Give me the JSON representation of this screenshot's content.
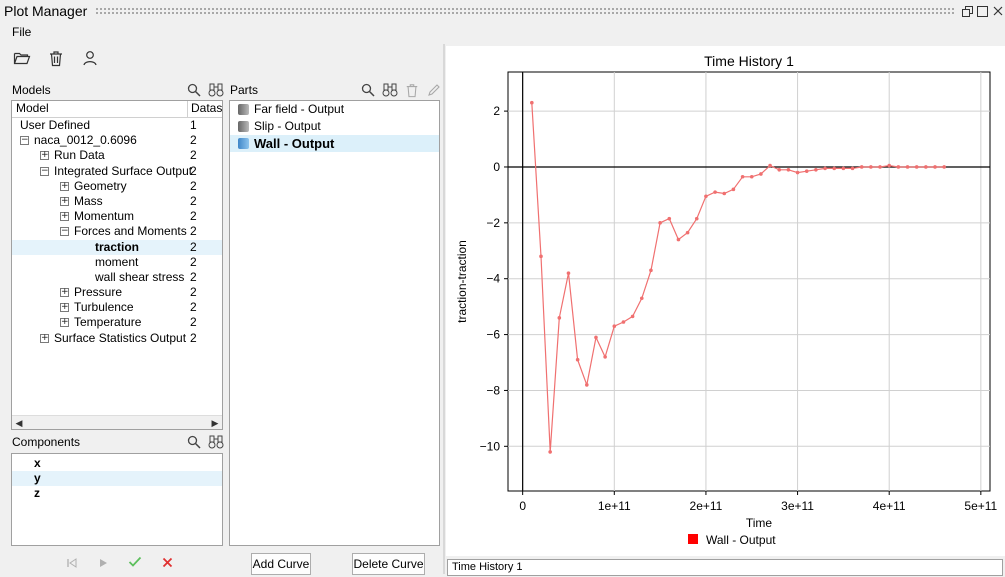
{
  "window": {
    "title": "Plot Manager"
  },
  "menu": {
    "file": "File"
  },
  "toolbar": {
    "icons": [
      "open-folder-icon",
      "trash-icon",
      "user-icon"
    ]
  },
  "models": {
    "label": "Models",
    "columns": [
      "Model",
      "Datas"
    ],
    "rows": [
      {
        "label": "User Defined",
        "value": "1",
        "level": 0,
        "expander": "none"
      },
      {
        "label": "naca_0012_0.6096",
        "value": "2",
        "level": 0,
        "expander": "minus"
      },
      {
        "label": "Run Data",
        "value": "2",
        "level": 1,
        "expander": "plus"
      },
      {
        "label": "Integrated Surface Output",
        "value": "2",
        "level": 1,
        "expander": "minus"
      },
      {
        "label": "Geometry",
        "value": "2",
        "level": 2,
        "expander": "plus"
      },
      {
        "label": "Mass",
        "value": "2",
        "level": 2,
        "expander": "plus"
      },
      {
        "label": "Momentum",
        "value": "2",
        "level": 2,
        "expander": "plus"
      },
      {
        "label": "Forces and Moments",
        "value": "2",
        "level": 2,
        "expander": "minus"
      },
      {
        "label": "traction",
        "value": "2",
        "level": 3,
        "expander": "none",
        "selected": true
      },
      {
        "label": "moment",
        "value": "2",
        "level": 3,
        "expander": "none"
      },
      {
        "label": "wall shear stress",
        "value": "2",
        "level": 3,
        "expander": "none"
      },
      {
        "label": "Pressure",
        "value": "2",
        "level": 2,
        "expander": "plus"
      },
      {
        "label": "Turbulence",
        "value": "2",
        "level": 2,
        "expander": "plus"
      },
      {
        "label": "Temperature",
        "value": "2",
        "level": 2,
        "expander": "plus"
      },
      {
        "label": "Surface Statistics Output",
        "value": "2",
        "level": 1,
        "expander": "plus"
      }
    ]
  },
  "parts": {
    "label": "Parts",
    "items": [
      {
        "label": "Far field - Output",
        "selected": false
      },
      {
        "label": "Slip - Output",
        "selected": false
      },
      {
        "label": "Wall - Output",
        "selected": true
      }
    ]
  },
  "components": {
    "label": "Components",
    "items": [
      {
        "label": "x",
        "selected": false
      },
      {
        "label": "y",
        "selected": true
      },
      {
        "label": "z",
        "selected": false
      }
    ]
  },
  "buttons": {
    "add_curve": "Add Curve",
    "delete_curve": "Delete Curve"
  },
  "status": {
    "text": "Time History 1"
  },
  "colors": {
    "series": "#f07070",
    "selection": "#e5f3fb",
    "legend": "#ff0000"
  },
  "chart_data": {
    "type": "line",
    "title": "Time History 1",
    "xlabel": "Time",
    "ylabel": "traction-traction",
    "xlim": [
      -16000000000.0,
      510000000000.0
    ],
    "ylim": [
      -11.6,
      3.4
    ],
    "xticks": [
      0,
      100000000000.0,
      200000000000.0,
      300000000000.0,
      400000000000.0,
      500000000000.0
    ],
    "xtick_labels": [
      "0",
      "1e+11",
      "2e+11",
      "3e+11",
      "4e+11",
      "5e+11"
    ],
    "yticks": [
      2,
      0,
      -2,
      -4,
      -6,
      -8,
      -10
    ],
    "ytick_labels": [
      "2",
      "0",
      "−2",
      "−4",
      "−6",
      "−8",
      "−10"
    ],
    "grid": true,
    "legend_position": "bottom-center",
    "series": [
      {
        "name": "Wall - Output",
        "color": "#f07070",
        "x": [
          10000000000.0,
          20000000000.0,
          30000000000.0,
          40000000000.0,
          50000000000.0,
          60000000000.0,
          70000000000.0,
          80000000000.0,
          90000000000.0,
          100000000000.0,
          110000000000.0,
          120000000000.0,
          130000000000.0,
          140000000000.0,
          150000000000.0,
          160000000000.0,
          170000000000.0,
          180000000000.0,
          190000000000.0,
          200000000000.0,
          210000000000.0,
          220000000000.0,
          230000000000.0,
          240000000000.0,
          250000000000.0,
          260000000000.0,
          270000000000.0,
          280000000000.0,
          290000000000.0,
          300000000000.0,
          310000000000.0,
          320000000000.0,
          330000000000.0,
          340000000000.0,
          350000000000.0,
          360000000000.0,
          370000000000.0,
          380000000000.0,
          390000000000.0,
          400000000000.0,
          410000000000.0,
          420000000000.0,
          430000000000.0,
          440000000000.0,
          450000000000.0,
          460000000000.0
        ],
        "y": [
          2.3,
          -3.2,
          -10.2,
          -5.4,
          -3.8,
          -6.9,
          -7.8,
          -6.1,
          -6.8,
          -5.7,
          -5.55,
          -5.35,
          -4.7,
          -3.7,
          -2.0,
          -1.85,
          -2.6,
          -2.35,
          -1.85,
          -1.05,
          -0.9,
          -0.95,
          -0.8,
          -0.35,
          -0.35,
          -0.25,
          0.05,
          -0.1,
          -0.1,
          -0.2,
          -0.15,
          -0.1,
          -0.05,
          -0.05,
          -0.05,
          -0.05,
          0.0,
          0.0,
          0.0,
          0.05,
          0.0,
          0.0,
          0.0,
          0.0,
          0.0,
          0.0
        ]
      }
    ]
  }
}
